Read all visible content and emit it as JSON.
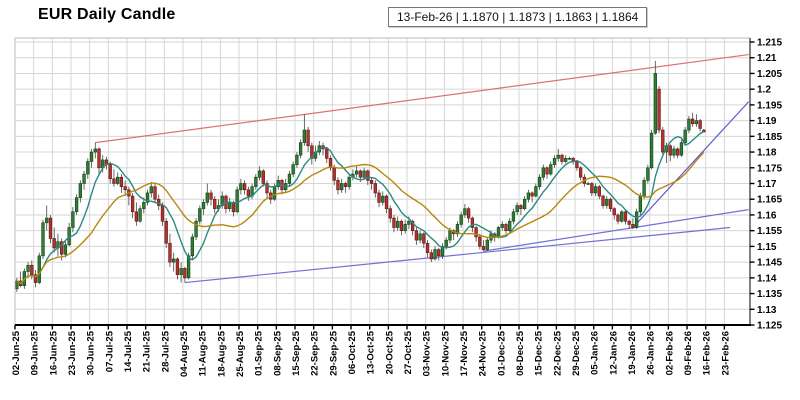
{
  "header": {
    "title": "EUR Daily Candle",
    "info_box": "13-Feb-26 | 1.1870 | 1.1873 | 1.1863 | 1.1864"
  },
  "chart_data": {
    "type": "candlestick",
    "title": "EUR Daily Candle",
    "frequency": "daily",
    "last_quote": {
      "date": "13-Feb-26",
      "open": "1.1870",
      "high": "1.1873",
      "low": "1.1863",
      "close": "1.1864"
    },
    "grid": true,
    "legend": "none",
    "ylim": [
      1.125,
      1.2163
    ],
    "y_tick_labels": [
      "1.215",
      "1.21",
      "1.205",
      "1.2",
      "1.195",
      "1.19",
      "1.185",
      "1.18",
      "1.175",
      "1.17",
      "1.165",
      "1.16",
      "1.155",
      "1.15",
      "1.145",
      "1.14",
      "1.135",
      "1.13",
      "1.125"
    ],
    "x_tick_labels": [
      "02-Jun-25",
      "09-Jun-25",
      "16-Jun-25",
      "23-Jun-25",
      "30-Jun-25",
      "07-Jul-25",
      "14-Jul-25",
      "21-Jul-25",
      "28-Jul-25",
      "04-Aug-25",
      "11-Aug-25",
      "18-Aug-25",
      "25-Aug-25",
      "01-Sep-25",
      "08-Sep-25",
      "15-Sep-25",
      "22-Sep-25",
      "29-Sep-25",
      "06-Oct-25",
      "13-Oct-25",
      "20-Oct-25",
      "27-Oct-25",
      "03-Nov-25",
      "10-Nov-25",
      "17-Nov-25",
      "24-Nov-25",
      "01-Dec-25",
      "08-Dec-25",
      "15-Dec-25",
      "22-Dec-25",
      "29-Dec-25",
      "05-Jan-26",
      "12-Jan-26",
      "19-Jan-26",
      "26-Jan-26",
      "02-Feb-26",
      "09-Feb-26",
      "16-Feb-26",
      "23-Feb-26"
    ],
    "days_per_tick": 5,
    "candles_ohlc": [
      [
        1.1365,
        1.14,
        1.1355,
        1.139
      ],
      [
        1.139,
        1.142,
        1.137,
        1.1375
      ],
      [
        1.1375,
        1.143,
        1.1365,
        1.142
      ],
      [
        1.142,
        1.145,
        1.14,
        1.144
      ],
      [
        1.144,
        1.1455,
        1.1395,
        1.141
      ],
      [
        1.141,
        1.1425,
        1.137,
        1.1385
      ],
      [
        1.1385,
        1.148,
        1.138,
        1.147
      ],
      [
        1.147,
        1.1585,
        1.146,
        1.1575
      ],
      [
        1.1575,
        1.163,
        1.155,
        1.159
      ],
      [
        1.159,
        1.16,
        1.151,
        1.1525
      ],
      [
        1.1525,
        1.156,
        1.148,
        1.1495
      ],
      [
        1.1495,
        1.154,
        1.147,
        1.1515
      ],
      [
        1.1515,
        1.1525,
        1.1455,
        1.1475
      ],
      [
        1.1475,
        1.152,
        1.1465,
        1.1505
      ],
      [
        1.1505,
        1.1575,
        1.15,
        1.156
      ],
      [
        1.156,
        1.1625,
        1.1545,
        1.161
      ],
      [
        1.161,
        1.1665,
        1.16,
        1.1655
      ],
      [
        1.1655,
        1.171,
        1.164,
        1.17
      ],
      [
        1.17,
        1.174,
        1.168,
        1.173
      ],
      [
        1.173,
        1.178,
        1.1715,
        1.177
      ],
      [
        1.177,
        1.181,
        1.175,
        1.18
      ],
      [
        1.18,
        1.183,
        1.178,
        1.181
      ],
      [
        1.181,
        1.1815,
        1.173,
        1.175
      ],
      [
        1.175,
        1.179,
        1.1735,
        1.1775
      ],
      [
        1.1775,
        1.1785,
        1.1745,
        1.176
      ],
      [
        1.176,
        1.177,
        1.17,
        1.1715
      ],
      [
        1.1715,
        1.1745,
        1.169,
        1.17
      ],
      [
        1.17,
        1.1735,
        1.1695,
        1.172
      ],
      [
        1.172,
        1.173,
        1.167,
        1.169
      ],
      [
        1.169,
        1.171,
        1.166,
        1.168
      ],
      [
        1.168,
        1.169,
        1.163,
        1.166
      ],
      [
        1.166,
        1.167,
        1.159,
        1.161
      ],
      [
        1.161,
        1.164,
        1.1565,
        1.158
      ],
      [
        1.158,
        1.163,
        1.1575,
        1.162
      ],
      [
        1.162,
        1.1655,
        1.1605,
        1.164
      ],
      [
        1.164,
        1.168,
        1.163,
        1.167
      ],
      [
        1.167,
        1.1705,
        1.1655,
        1.169
      ],
      [
        1.169,
        1.17,
        1.164,
        1.165
      ],
      [
        1.165,
        1.1665,
        1.1615,
        1.163
      ],
      [
        1.163,
        1.164,
        1.1565,
        1.158
      ],
      [
        1.158,
        1.159,
        1.1495,
        1.151
      ],
      [
        1.151,
        1.154,
        1.1435,
        1.145
      ],
      [
        1.145,
        1.148,
        1.142,
        1.146
      ],
      [
        1.146,
        1.1465,
        1.1395,
        1.141
      ],
      [
        1.141,
        1.145,
        1.1385,
        1.143
      ],
      [
        1.143,
        1.1435,
        1.1385,
        1.14
      ],
      [
        1.14,
        1.148,
        1.1395,
        1.147
      ],
      [
        1.147,
        1.154,
        1.146,
        1.153
      ],
      [
        1.153,
        1.159,
        1.152,
        1.158
      ],
      [
        1.158,
        1.163,
        1.157,
        1.162
      ],
      [
        1.162,
        1.165,
        1.16,
        1.164
      ],
      [
        1.164,
        1.17,
        1.163,
        1.167
      ],
      [
        1.167,
        1.168,
        1.163,
        1.165
      ],
      [
        1.165,
        1.166,
        1.1605,
        1.162
      ],
      [
        1.162,
        1.165,
        1.161,
        1.163
      ],
      [
        1.163,
        1.1675,
        1.162,
        1.166
      ],
      [
        1.166,
        1.1665,
        1.1605,
        1.162
      ],
      [
        1.162,
        1.1655,
        1.161,
        1.164
      ],
      [
        1.164,
        1.1645,
        1.1595,
        1.161
      ],
      [
        1.161,
        1.169,
        1.1605,
        1.168
      ],
      [
        1.168,
        1.1715,
        1.1665,
        1.17
      ],
      [
        1.17,
        1.171,
        1.1665,
        1.168
      ],
      [
        1.168,
        1.169,
        1.1645,
        1.166
      ],
      [
        1.166,
        1.17,
        1.165,
        1.169
      ],
      [
        1.169,
        1.173,
        1.168,
        1.172
      ],
      [
        1.172,
        1.1755,
        1.171,
        1.174
      ],
      [
        1.174,
        1.1745,
        1.169,
        1.17
      ],
      [
        1.17,
        1.171,
        1.1655,
        1.167
      ],
      [
        1.167,
        1.168,
        1.1635,
        1.165
      ],
      [
        1.165,
        1.17,
        1.1645,
        1.169
      ],
      [
        1.169,
        1.1725,
        1.168,
        1.171
      ],
      [
        1.171,
        1.1715,
        1.1665,
        1.168
      ],
      [
        1.168,
        1.1715,
        1.167,
        1.17
      ],
      [
        1.17,
        1.174,
        1.169,
        1.173
      ],
      [
        1.173,
        1.177,
        1.172,
        1.176
      ],
      [
        1.176,
        1.18,
        1.175,
        1.179
      ],
      [
        1.179,
        1.184,
        1.178,
        1.183
      ],
      [
        1.183,
        1.192,
        1.182,
        1.187
      ],
      [
        1.187,
        1.188,
        1.18,
        1.182
      ],
      [
        1.182,
        1.183,
        1.176,
        1.178
      ],
      [
        1.178,
        1.182,
        1.177,
        1.18
      ],
      [
        1.18,
        1.1835,
        1.179,
        1.182
      ],
      [
        1.182,
        1.183,
        1.179,
        1.181
      ],
      [
        1.181,
        1.1815,
        1.1765,
        1.178
      ],
      [
        1.178,
        1.179,
        1.174,
        1.175
      ],
      [
        1.175,
        1.176,
        1.1695,
        1.171
      ],
      [
        1.171,
        1.172,
        1.1665,
        1.168
      ],
      [
        1.168,
        1.1715,
        1.167,
        1.17
      ],
      [
        1.17,
        1.1705,
        1.167,
        1.169
      ],
      [
        1.169,
        1.173,
        1.168,
        1.172
      ],
      [
        1.172,
        1.1745,
        1.171,
        1.173
      ],
      [
        1.173,
        1.1755,
        1.172,
        1.174
      ],
      [
        1.174,
        1.1745,
        1.1705,
        1.172
      ],
      [
        1.172,
        1.175,
        1.171,
        1.174
      ],
      [
        1.174,
        1.1745,
        1.1695,
        1.171
      ],
      [
        1.171,
        1.172,
        1.168,
        1.17
      ],
      [
        1.17,
        1.171,
        1.1655,
        1.167
      ],
      [
        1.167,
        1.168,
        1.1625,
        1.164
      ],
      [
        1.164,
        1.1675,
        1.163,
        1.166
      ],
      [
        1.166,
        1.1665,
        1.1605,
        1.162
      ],
      [
        1.162,
        1.163,
        1.1575,
        1.159
      ],
      [
        1.159,
        1.16,
        1.1545,
        1.156
      ],
      [
        1.156,
        1.1595,
        1.155,
        1.158
      ],
      [
        1.158,
        1.1585,
        1.1535,
        1.155
      ],
      [
        1.155,
        1.1585,
        1.154,
        1.157
      ],
      [
        1.157,
        1.1595,
        1.1555,
        1.158
      ],
      [
        1.158,
        1.1585,
        1.1535,
        1.155
      ],
      [
        1.155,
        1.156,
        1.1505,
        1.152
      ],
      [
        1.152,
        1.155,
        1.151,
        1.154
      ],
      [
        1.154,
        1.1545,
        1.1495,
        1.151
      ],
      [
        1.151,
        1.152,
        1.1465,
        1.148
      ],
      [
        1.148,
        1.149,
        1.145,
        1.146
      ],
      [
        1.146,
        1.15,
        1.1455,
        1.149
      ],
      [
        1.149,
        1.1495,
        1.1455,
        1.147
      ],
      [
        1.147,
        1.151,
        1.146,
        1.15
      ],
      [
        1.15,
        1.153,
        1.149,
        1.152
      ],
      [
        1.152,
        1.156,
        1.151,
        1.155
      ],
      [
        1.155,
        1.1555,
        1.152,
        1.154
      ],
      [
        1.154,
        1.158,
        1.153,
        1.157
      ],
      [
        1.157,
        1.161,
        1.156,
        1.16
      ],
      [
        1.16,
        1.1635,
        1.159,
        1.162
      ],
      [
        1.162,
        1.1625,
        1.1575,
        1.159
      ],
      [
        1.159,
        1.1595,
        1.1545,
        1.156
      ],
      [
        1.156,
        1.1565,
        1.1515,
        1.153
      ],
      [
        1.153,
        1.154,
        1.149,
        1.15
      ],
      [
        1.15,
        1.152,
        1.1485,
        1.149
      ],
      [
        1.149,
        1.153,
        1.1485,
        1.152
      ],
      [
        1.152,
        1.155,
        1.151,
        1.154
      ],
      [
        1.154,
        1.1545,
        1.1515,
        1.153
      ],
      [
        1.153,
        1.1565,
        1.1525,
        1.156
      ],
      [
        1.156,
        1.158,
        1.155,
        1.157
      ],
      [
        1.157,
        1.1575,
        1.154,
        1.155
      ],
      [
        1.155,
        1.159,
        1.1545,
        1.158
      ],
      [
        1.158,
        1.162,
        1.157,
        1.161
      ],
      [
        1.161,
        1.164,
        1.16,
        1.163
      ],
      [
        1.163,
        1.1635,
        1.16,
        1.162
      ],
      [
        1.162,
        1.166,
        1.1615,
        1.165
      ],
      [
        1.165,
        1.168,
        1.164,
        1.167
      ],
      [
        1.167,
        1.1675,
        1.164,
        1.166
      ],
      [
        1.166,
        1.17,
        1.1655,
        1.169
      ],
      [
        1.169,
        1.173,
        1.168,
        1.172
      ],
      [
        1.172,
        1.176,
        1.171,
        1.175
      ],
      [
        1.175,
        1.1755,
        1.1715,
        1.173
      ],
      [
        1.173,
        1.177,
        1.1725,
        1.176
      ],
      [
        1.176,
        1.179,
        1.175,
        1.178
      ],
      [
        1.178,
        1.181,
        1.177,
        1.179
      ],
      [
        1.179,
        1.1795,
        1.176,
        1.177
      ],
      [
        1.177,
        1.179,
        1.1765,
        1.178
      ],
      [
        1.178,
        1.1785,
        1.1775,
        1.178
      ],
      [
        1.178,
        1.1785,
        1.176,
        1.177
      ],
      [
        1.177,
        1.1775,
        1.174,
        1.175
      ],
      [
        1.175,
        1.1755,
        1.171,
        1.172
      ],
      [
        1.172,
        1.173,
        1.169,
        1.17
      ],
      [
        1.17,
        1.1705,
        1.1695,
        1.17
      ],
      [
        1.17,
        1.1705,
        1.166,
        1.167
      ],
      [
        1.167,
        1.17,
        1.166,
        1.169
      ],
      [
        1.169,
        1.1695,
        1.165,
        1.166
      ],
      [
        1.166,
        1.1665,
        1.162,
        1.163
      ],
      [
        1.163,
        1.166,
        1.162,
        1.165
      ],
      [
        1.165,
        1.1655,
        1.161,
        1.162
      ],
      [
        1.162,
        1.1625,
        1.1585,
        1.16
      ],
      [
        1.16,
        1.1605,
        1.157,
        1.158
      ],
      [
        1.158,
        1.1615,
        1.1575,
        1.161
      ],
      [
        1.161,
        1.1615,
        1.157,
        1.158
      ],
      [
        1.158,
        1.1585,
        1.1555,
        1.157
      ],
      [
        1.157,
        1.159,
        1.1555,
        1.156
      ],
      [
        1.156,
        1.162,
        1.1555,
        1.161
      ],
      [
        1.161,
        1.167,
        1.16,
        1.166
      ],
      [
        1.166,
        1.172,
        1.165,
        1.171
      ],
      [
        1.171,
        1.176,
        1.17,
        1.175
      ],
      [
        1.175,
        1.187,
        1.1745,
        1.186
      ],
      [
        1.186,
        1.209,
        1.1855,
        1.205
      ],
      [
        1.2,
        1.201,
        1.186,
        1.187
      ],
      [
        1.187,
        1.188,
        1.179,
        1.18
      ],
      [
        1.18,
        1.183,
        1.1765,
        1.182
      ],
      [
        1.182,
        1.1825,
        1.177,
        1.179
      ],
      [
        1.179,
        1.182,
        1.178,
        1.181
      ],
      [
        1.181,
        1.1815,
        1.178,
        1.179
      ],
      [
        1.179,
        1.184,
        1.1785,
        1.183
      ],
      [
        1.183,
        1.188,
        1.182,
        1.187
      ],
      [
        1.187,
        1.1915,
        1.186,
        1.1905
      ],
      [
        1.1905,
        1.1925,
        1.188,
        1.189
      ],
      [
        1.189,
        1.192,
        1.188,
        1.19
      ],
      [
        1.19,
        1.1905,
        1.1865,
        1.1875
      ],
      [
        1.187,
        1.1873,
        1.1863,
        1.1864
      ]
    ],
    "moving_averages": [
      {
        "name": "ma-fast",
        "type": "sma",
        "period": 8,
        "color": "#2a8a80"
      },
      {
        "name": "ma-slow",
        "type": "sma",
        "period": 21,
        "color": "#b8860b"
      }
    ],
    "trendlines": [
      {
        "name": "resistance-line",
        "from_index": 21,
        "from_price": 1.183,
        "to_index": 196,
        "to_price": 1.211,
        "color": "#e07070"
      },
      {
        "name": "support-line-long",
        "from_index": 45,
        "from_price": 1.1385,
        "to_index": 191,
        "to_price": 1.156,
        "color": "#7070d8"
      },
      {
        "name": "support-line-mid",
        "from_index": 125,
        "from_price": 1.1485,
        "to_index": 196,
        "to_price": 1.1617,
        "color": "#7070d8"
      },
      {
        "name": "support-line-steep",
        "from_index": 165,
        "from_price": 1.156,
        "to_index": 196,
        "to_price": 1.196,
        "color": "#5a5ad0"
      }
    ],
    "colors": {
      "up_fill": "#2f7d33",
      "up_stroke": "#14411a",
      "down_fill": "#b23230",
      "down_stroke": "#5e1713",
      "wick": "#444444",
      "grid": "#d6d6d6",
      "frame_light": "#bbbbbb",
      "frame_dark": "#000000",
      "axis_text": "#000000",
      "background": "#ffffff"
    }
  }
}
